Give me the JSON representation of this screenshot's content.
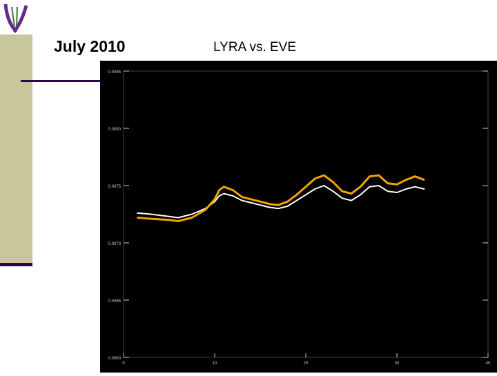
{
  "slide": {
    "title": "July 2010",
    "subtitle": "LYRA vs. EVE"
  },
  "colors": {
    "accent": "#2c0a4a",
    "sidebar": "#c8c79b",
    "lyra_series": "#f0a500",
    "eve_series": "#ffffff",
    "plot_bg": "#000000"
  },
  "chart_data": {
    "type": "line",
    "title": "",
    "xlabel": "",
    "ylabel": "",
    "xlim": [
      0,
      40
    ],
    "ylim": [
      0.006,
      0.0085
    ],
    "xticks": [
      0,
      10,
      20,
      30,
      40
    ],
    "xtick_labels": [
      "0",
      "10",
      "20",
      "30",
      "40"
    ],
    "yticks": [
      0.006,
      0.0065,
      0.007,
      0.0075,
      0.008,
      0.0085
    ],
    "ytick_labels": [
      "0.0060",
      "0.0065",
      "0.0070",
      "0.0075",
      "0.0080",
      "0.0085"
    ],
    "series": [
      {
        "color": "#f0a500",
        "x": [
          1.5,
          3,
          5,
          6,
          7.5,
          9,
          10,
          10.5,
          11,
          12,
          13,
          14,
          15,
          16,
          17,
          18,
          19,
          20,
          21,
          22,
          23,
          24,
          25,
          26,
          27,
          28,
          29,
          30,
          31,
          32,
          33
        ],
        "y": [
          0.00722,
          0.00721,
          0.0072,
          0.00719,
          0.00722,
          0.00729,
          0.00738,
          0.00746,
          0.00749,
          0.00746,
          0.0074,
          0.00738,
          0.00736,
          0.00734,
          0.00733,
          0.00736,
          0.00742,
          0.00749,
          0.00756,
          0.00759,
          0.00753,
          0.00745,
          0.00743,
          0.00749,
          0.00758,
          0.00759,
          0.00752,
          0.00751,
          0.00755,
          0.00758,
          0.00755
        ]
      },
      {
        "color": "#ffffff",
        "x": [
          1.5,
          3,
          5,
          6,
          7.5,
          9,
          10,
          10.5,
          11,
          12,
          13,
          14,
          15,
          16,
          17,
          18,
          19,
          20,
          21,
          22,
          23,
          24,
          25,
          26,
          27,
          28,
          29,
          30,
          31,
          32,
          33
        ],
        "y": [
          0.00726,
          0.00725,
          0.00723,
          0.00722,
          0.00725,
          0.0073,
          0.00736,
          0.00741,
          0.00743,
          0.00741,
          0.00737,
          0.00735,
          0.00733,
          0.00731,
          0.0073,
          0.00732,
          0.00737,
          0.00742,
          0.00747,
          0.0075,
          0.00745,
          0.00739,
          0.00737,
          0.00742,
          0.00749,
          0.0075,
          0.00745,
          0.00744,
          0.00747,
          0.00749,
          0.00747
        ]
      }
    ]
  }
}
